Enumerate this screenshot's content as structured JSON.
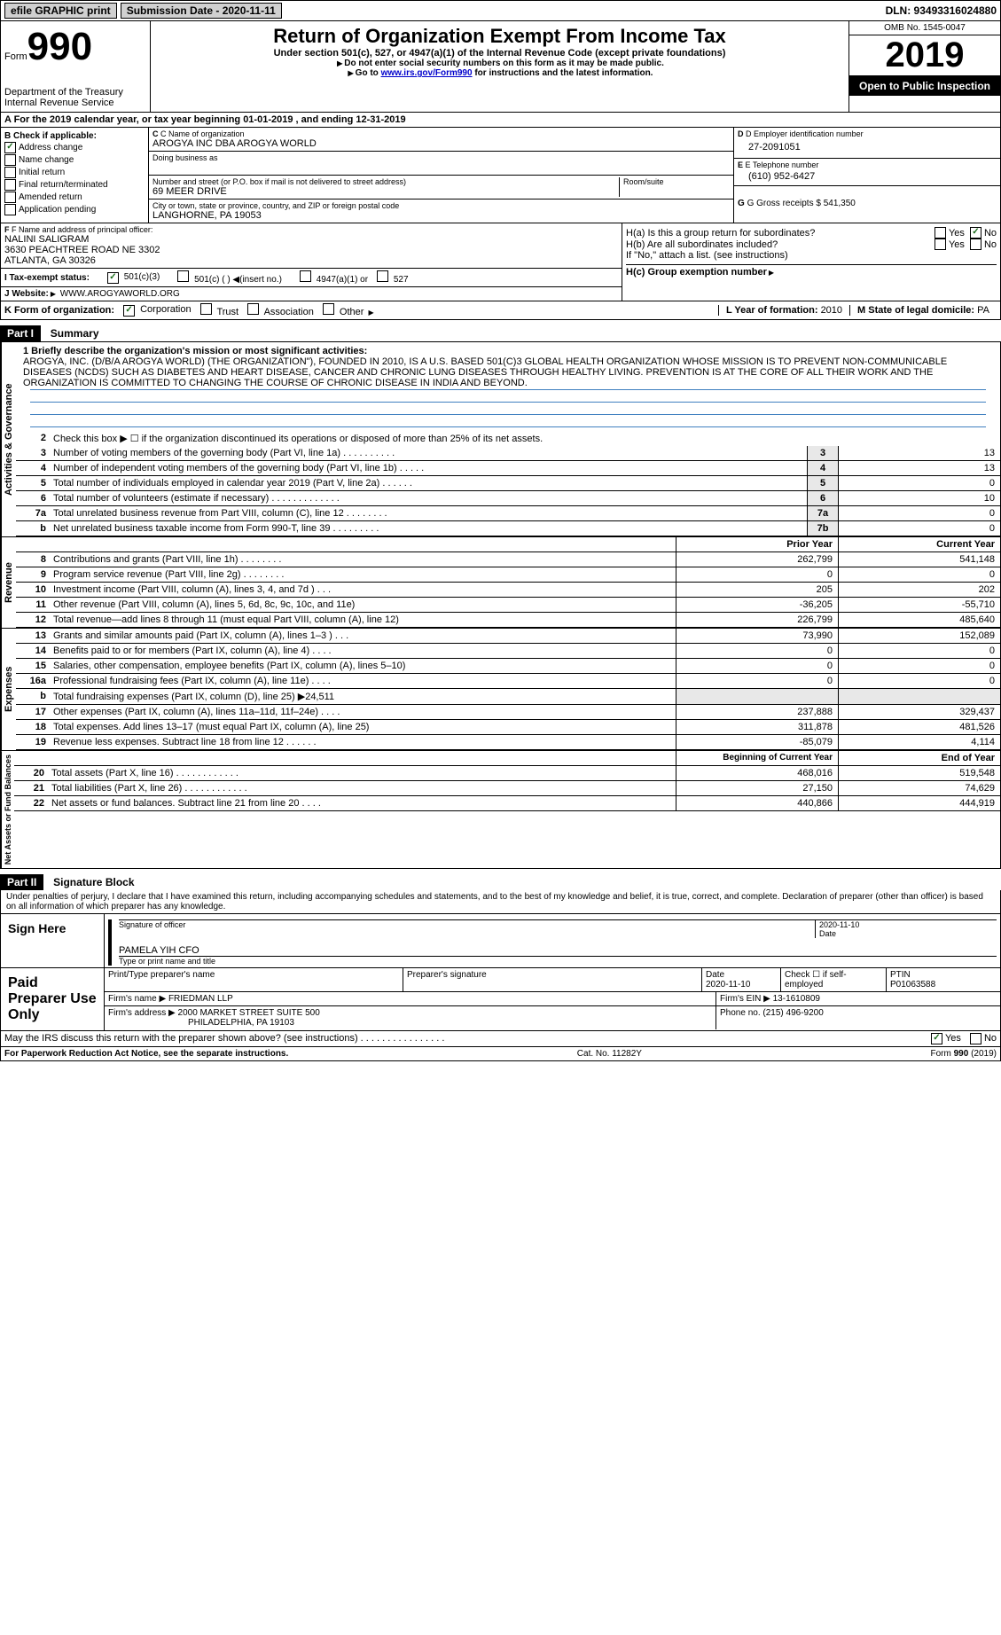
{
  "top": {
    "efile": "efile GRAPHIC print",
    "submission": "Submission Date - 2020-11-11",
    "dln": "DLN: 93493316024880"
  },
  "header": {
    "form_label": "Form",
    "form_num": "990",
    "dept": "Department of the Treasury\nInternal Revenue Service",
    "title": "Return of Organization Exempt From Income Tax",
    "subtitle": "Under section 501(c), 527, or 4947(a)(1) of the Internal Revenue Code (except private foundations)",
    "note1": "Do not enter social security numbers on this form as it may be made public.",
    "note2_pre": "Go to ",
    "note2_link": "www.irs.gov/Form990",
    "note2_post": " for instructions and the latest information.",
    "omb": "OMB No. 1545-0047",
    "year": "2019",
    "open": "Open to Public Inspection"
  },
  "row_a": "A   For the 2019 calendar year, or tax year beginning 01-01-2019    , and ending 12-31-2019",
  "section_b": {
    "b_label": "B Check if applicable:",
    "b_items": [
      "Address change",
      "Name change",
      "Initial return",
      "Final return/terminated",
      "Amended return",
      "Application pending"
    ],
    "c_label": "C Name of organization",
    "c_name": "AROGYA INC DBA AROGYA WORLD",
    "dba_label": "Doing business as",
    "street_label": "Number and street (or P.O. box if mail is not delivered to street address)",
    "room_label": "Room/suite",
    "street": "69 MEER DRIVE",
    "city_label": "City or town, state or province, country, and ZIP or foreign postal code",
    "city": "LANGHORNE, PA  19053",
    "d_label": "D Employer identification number",
    "d_val": "27-2091051",
    "e_label": "E Telephone number",
    "e_val": "(610) 952-6427",
    "g_label": "G Gross receipts $",
    "g_val": "541,350"
  },
  "section_f": {
    "f_label": "F Name and address of principal officer:",
    "f_name": "NALINI SALIGRAM",
    "f_addr1": "3630 PEACHTREE ROAD NE 3302",
    "f_addr2": "ATLANTA, GA  30326",
    "i_label": "I   Tax-exempt status:",
    "i_opts": [
      "501(c)(3)",
      "501(c) (   ) ◀(insert no.)",
      "4947(a)(1) or",
      "527"
    ],
    "j_label": "J   Website:",
    "j_val": "WWW.AROGYAWORLD.ORG",
    "ha": "H(a)  Is this a group return for subordinates?",
    "hb": "H(b)  Are all subordinates included?",
    "hb_note": "If \"No,\" attach a list. (see instructions)",
    "hc": "H(c)  Group exemption number",
    "yes": "Yes",
    "no": "No"
  },
  "row_k": {
    "k_label": "K Form of organization:",
    "k_opts": [
      "Corporation",
      "Trust",
      "Association",
      "Other"
    ],
    "l_label": "L Year of formation:",
    "l_val": "2010",
    "m_label": "M State of legal domicile:",
    "m_val": "PA"
  },
  "part1": {
    "header": "Part I",
    "title": "Summary",
    "line1_label": "1 Briefly describe the organization's mission or most significant activities:",
    "mission": "AROGYA, INC. (D/B/A AROGYA WORLD) (THE ORGANIZATION\"), FOUNDED IN 2010, IS A U.S. BASED 501(C)3 GLOBAL HEALTH ORGANIZATION WHOSE MISSION IS TO PREVENT NON-COMMUNICABLE DISEASES (NCDS) SUCH AS DIABETES AND HEART DISEASE, CANCER AND CHRONIC LUNG DISEASES THROUGH HEALTHY LIVING. PREVENTION IS AT THE CORE OF ALL THEIR WORK AND THE ORGANIZATION IS COMMITTED TO CHANGING THE COURSE OF CHRONIC DISEASE IN INDIA AND BEYOND.",
    "line2": "Check this box ▶ ☐ if the organization discontinued its operations or disposed of more than 25% of its net assets.",
    "gov_lines": [
      {
        "n": "3",
        "d": "Number of voting members of the governing body (Part VI, line 1a)   .    .    .    .    .    .    .    .    .    .",
        "b": "3",
        "v": "13"
      },
      {
        "n": "4",
        "d": "Number of independent voting members of the governing body (Part VI, line 1b)   .    .    .    .    .",
        "b": "4",
        "v": "13"
      },
      {
        "n": "5",
        "d": "Total number of individuals employed in calendar year 2019 (Part V, line 2a)   .    .    .    .    .    .",
        "b": "5",
        "v": "0"
      },
      {
        "n": "6",
        "d": "Total number of volunteers (estimate if necessary)   .    .    .    .    .    .    .    .    .    .    .    .    .",
        "b": "6",
        "v": "10"
      },
      {
        "n": "7a",
        "d": "Total unrelated business revenue from Part VIII, column (C), line 12   .    .    .    .    .    .    .    .",
        "b": "7a",
        "v": "0"
      },
      {
        "n": "b",
        "d": "Net unrelated business taxable income from Form 990-T, line 39   .    .    .    .    .    .    .    .    .",
        "b": "7b",
        "v": "0"
      }
    ],
    "prior_head": "Prior Year",
    "current_head": "Current Year",
    "rev_lines": [
      {
        "n": "8",
        "d": "Contributions and grants (Part VIII, line 1h)   .    .    .    .    .    .    .    .",
        "p": "262,799",
        "c": "541,148"
      },
      {
        "n": "9",
        "d": "Program service revenue (Part VIII, line 2g)   .    .    .    .    .    .    .    .",
        "p": "0",
        "c": "0"
      },
      {
        "n": "10",
        "d": "Investment income (Part VIII, column (A), lines 3, 4, and 7d )   .    .    .",
        "p": "205",
        "c": "202"
      },
      {
        "n": "11",
        "d": "Other revenue (Part VIII, column (A), lines 5, 6d, 8c, 9c, 10c, and 11e)",
        "p": "-36,205",
        "c": "-55,710"
      },
      {
        "n": "12",
        "d": "Total revenue—add lines 8 through 11 (must equal Part VIII, column (A), line 12)",
        "p": "226,799",
        "c": "485,640"
      }
    ],
    "exp_lines": [
      {
        "n": "13",
        "d": "Grants and similar amounts paid (Part IX, column (A), lines 1–3 )   .    .    .",
        "p": "73,990",
        "c": "152,089"
      },
      {
        "n": "14",
        "d": "Benefits paid to or for members (Part IX, column (A), line 4)   .    .    .    .",
        "p": "0",
        "c": "0"
      },
      {
        "n": "15",
        "d": "Salaries, other compensation, employee benefits (Part IX, column (A), lines 5–10)",
        "p": "0",
        "c": "0"
      },
      {
        "n": "16a",
        "d": "Professional fundraising fees (Part IX, column (A), line 11e)   .    .    .    .",
        "p": "0",
        "c": "0"
      },
      {
        "n": "b",
        "d": "Total fundraising expenses (Part IX, column (D), line 25) ▶24,511",
        "p": "",
        "c": ""
      },
      {
        "n": "17",
        "d": "Other expenses (Part IX, column (A), lines 11a–11d, 11f–24e)   .    .    .    .",
        "p": "237,888",
        "c": "329,437"
      },
      {
        "n": "18",
        "d": "Total expenses. Add lines 13–17 (must equal Part IX, column (A), line 25)",
        "p": "311,878",
        "c": "481,526"
      },
      {
        "n": "19",
        "d": "Revenue less expenses. Subtract line 18 from line 12   .    .    .    .    .    .",
        "p": "-85,079",
        "c": "4,114"
      }
    ],
    "begin_head": "Beginning of Current Year",
    "end_head": "End of Year",
    "net_lines": [
      {
        "n": "20",
        "d": "Total assets (Part X, line 16)   .    .    .    .    .    .    .    .    .    .    .    .",
        "p": "468,016",
        "c": "519,548"
      },
      {
        "n": "21",
        "d": "Total liabilities (Part X, line 26)   .    .    .    .    .    .    .    .    .    .    .    .",
        "p": "27,150",
        "c": "74,629"
      },
      {
        "n": "22",
        "d": "Net assets or fund balances. Subtract line 21 from line 20   .    .    .    .",
        "p": "440,866",
        "c": "444,919"
      }
    ]
  },
  "part2": {
    "header": "Part II",
    "title": "Signature Block",
    "decl": "Under penalties of perjury, I declare that I have examined this return, including accompanying schedules and statements, and to the best of my knowledge and belief, it is true, correct, and complete. Declaration of preparer (other than officer) is based on all information of which preparer has any knowledge.",
    "sign_here": "Sign Here",
    "sig_date": "2020-11-10",
    "sig_of_officer": "Signature of officer",
    "date_label": "Date",
    "officer_name": "PAMELA YIH  CFO",
    "type_name": "Type or print name and title",
    "paid": "Paid Preparer Use Only",
    "prep_name_label": "Print/Type preparer's name",
    "prep_sig_label": "Preparer's signature",
    "prep_date_label": "Date",
    "prep_date": "2020-11-10",
    "check_self": "Check ☐ if self-employed",
    "ptin_label": "PTIN",
    "ptin": "P01063588",
    "firm_name_label": "Firm's name   ▶",
    "firm_name": "FRIEDMAN LLP",
    "firm_ein_label": "Firm's EIN ▶",
    "firm_ein": "13-1610809",
    "firm_addr_label": "Firm's address ▶",
    "firm_addr1": "2000 MARKET STREET SUITE 500",
    "firm_addr2": "PHILADELPHIA, PA  19103",
    "phone_label": "Phone no.",
    "phone": "(215) 496-9200",
    "discuss": "May the IRS discuss this return with the preparer shown above? (see instructions)   .    .    .    .    .    .    .    .    .    .    .    .    .    .    .    .",
    "yes": "Yes",
    "no": "No"
  },
  "footer": {
    "paperwork": "For Paperwork Reduction Act Notice, see the separate instructions.",
    "cat": "Cat. No. 11282Y",
    "form": "Form 990 (2019)"
  },
  "side_labels": {
    "gov": "Activities & Governance",
    "rev": "Revenue",
    "exp": "Expenses",
    "net": "Net Assets or Fund Balances"
  }
}
